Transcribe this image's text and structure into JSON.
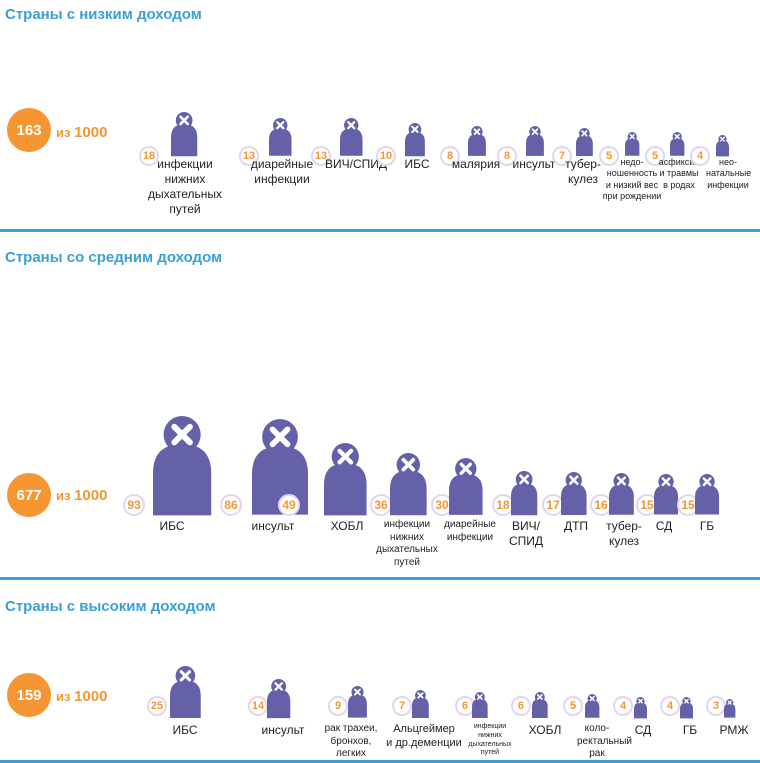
{
  "colors": {
    "accent": "#3aa0d8",
    "total": "#f59632",
    "figure": "#6461a8",
    "ring": "#e2d6ee"
  },
  "icon": "person-with-x-icon",
  "chart_data": [
    {
      "type": "pictogram",
      "title": "Страны с низким доходом",
      "total": {
        "value": "163",
        "prefix": "из",
        "denominator": "1000"
      },
      "items": [
        {
          "value": 18,
          "label": "инфекции нижних дыхательных путей"
        },
        {
          "value": 13,
          "label": "диарейные инфекции"
        },
        {
          "value": 13,
          "label": "ВИЧ/СПИД"
        },
        {
          "value": 10,
          "label": "ИБС"
        },
        {
          "value": 8,
          "label": "малярия"
        },
        {
          "value": 8,
          "label": "инсульт"
        },
        {
          "value": 7,
          "label": "тубер-кулез"
        },
        {
          "value": 5,
          "label": "недо-ношенность и низкий вес при рождении"
        },
        {
          "value": 5,
          "label": "асфиксия и травмы в родах"
        },
        {
          "value": 4,
          "label": "нео-натальные инфекции"
        }
      ]
    },
    {
      "type": "pictogram",
      "title": "Страны со средним доходом",
      "total": {
        "value": "677",
        "prefix": "из",
        "denominator": "1000"
      },
      "items": [
        {
          "value": 93,
          "label": "ИБС"
        },
        {
          "value": 86,
          "label": "инсульт"
        },
        {
          "value": 49,
          "label": "ХОБЛ"
        },
        {
          "value": 36,
          "label": "инфекции нижних дыхательных путей"
        },
        {
          "value": 30,
          "label": "диарейные инфекции"
        },
        {
          "value": 18,
          "label": "ВИЧ/ СПИД"
        },
        {
          "value": 17,
          "label": "ДТП"
        },
        {
          "value": 16,
          "label": "тубер-кулез"
        },
        {
          "value": 15,
          "label": "СД"
        },
        {
          "value": 15,
          "label": "ГБ"
        }
      ]
    },
    {
      "type": "pictogram",
      "title": "Страны с высоким доходом",
      "total": {
        "value": "159",
        "prefix": "из",
        "denominator": "1000"
      },
      "items": [
        {
          "value": 25,
          "label": "ИБС"
        },
        {
          "value": 14,
          "label": "инсульт"
        },
        {
          "value": 9,
          "label": "рак трахеи, бронхов, легких"
        },
        {
          "value": 7,
          "label": "Альцгеймер и др.деменции"
        },
        {
          "value": 6,
          "label": "инфекции нижних дыхательных путей"
        },
        {
          "value": 6,
          "label": "ХОБЛ"
        },
        {
          "value": 5,
          "label": "коло-ректальный рак"
        },
        {
          "value": 4,
          "label": "СД"
        },
        {
          "value": 4,
          "label": "ГБ"
        },
        {
          "value": 3,
          "label": "РМЖ"
        }
      ]
    }
  ]
}
